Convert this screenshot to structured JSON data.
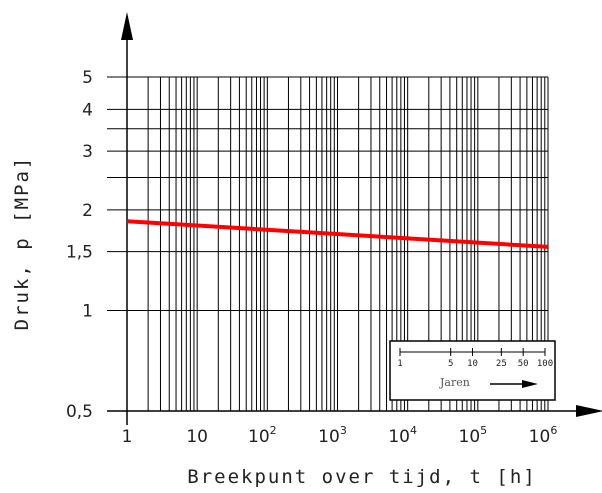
{
  "chart_data": {
    "type": "line",
    "xlabel": "Breekpunt over tijd, t [h]",
    "ylabel": "Druk, p [MPa]",
    "x_scale": "log",
    "y_scale": "log",
    "xlim": [
      1,
      1000000
    ],
    "ylim": [
      0.5,
      5
    ],
    "grid": true,
    "x_ticks": [
      {
        "value": 1,
        "base": "1",
        "exp": ""
      },
      {
        "value": 10,
        "base": "10",
        "exp": ""
      },
      {
        "value": 100,
        "base": "10",
        "exp": "2"
      },
      {
        "value": 1000,
        "base": "10",
        "exp": "3"
      },
      {
        "value": 10000,
        "base": "10",
        "exp": "4"
      },
      {
        "value": 100000,
        "base": "10",
        "exp": "5"
      },
      {
        "value": 1000000,
        "base": "10",
        "exp": "6"
      }
    ],
    "y_ticks": [
      {
        "value": 0.5,
        "label": "0,5"
      },
      {
        "value": 1,
        "label": "1"
      },
      {
        "value": 1.5,
        "label": "1,5"
      },
      {
        "value": 2,
        "label": "2"
      },
      {
        "value": 3,
        "label": "3"
      },
      {
        "value": 4,
        "label": "4"
      },
      {
        "value": 5,
        "label": "5"
      }
    ],
    "series": [
      {
        "color": "#ff0000",
        "x": [
          1,
          1000000
        ],
        "y": [
          1.85,
          1.55
        ]
      }
    ],
    "inset": {
      "ticks": [
        {
          "value": 1,
          "label": "1"
        },
        {
          "value": 5,
          "label": "5"
        },
        {
          "value": 10,
          "label": "10"
        },
        {
          "value": 25,
          "label": "25"
        },
        {
          "value": 50,
          "label": "50"
        },
        {
          "value": 100,
          "label": "100"
        }
      ],
      "label": "Jaren"
    }
  }
}
